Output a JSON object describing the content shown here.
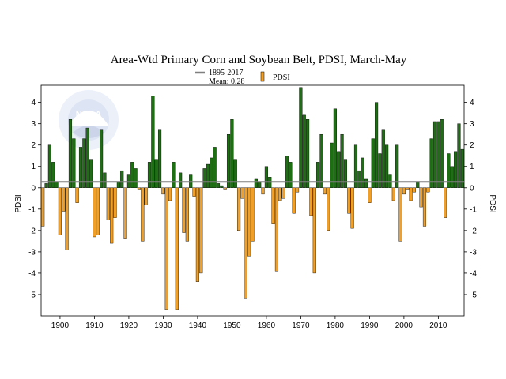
{
  "chart_data": {
    "type": "bar",
    "title": "Area-Wtd Primary Corn and Soybean Belt, PDSI, March-May",
    "ylabel_left": "PDSI",
    "ylabel_right": "PDSI",
    "xlim": [
      1895,
      2017
    ],
    "ylim": [
      -6,
      4.8
    ],
    "yticks": [
      -5,
      -4,
      -3,
      -2,
      -1,
      0,
      1,
      2,
      3,
      4
    ],
    "xticks": [
      1900,
      1910,
      1920,
      1930,
      1940,
      1950,
      1960,
      1970,
      1980,
      1990,
      2000,
      2010
    ],
    "grid": false,
    "legend_position": "top-center",
    "colors": {
      "positive": "#1e6e14",
      "negative": "#f0a028",
      "mean_line": "#7f7f7f",
      "bar_edge": "#000000"
    },
    "mean": {
      "label": "1895-2017",
      "sublabel": "Mean: 0.28",
      "value": 0.28
    },
    "series": [
      {
        "name": "PDSI",
        "x": [
          1895,
          1896,
          1897,
          1898,
          1899,
          1900,
          1901,
          1902,
          1903,
          1904,
          1905,
          1906,
          1907,
          1908,
          1909,
          1910,
          1911,
          1912,
          1913,
          1914,
          1915,
          1916,
          1917,
          1918,
          1919,
          1920,
          1921,
          1922,
          1923,
          1924,
          1925,
          1926,
          1927,
          1928,
          1929,
          1930,
          1931,
          1932,
          1933,
          1934,
          1935,
          1936,
          1937,
          1938,
          1939,
          1940,
          1941,
          1942,
          1943,
          1944,
          1945,
          1946,
          1947,
          1948,
          1949,
          1950,
          1951,
          1952,
          1953,
          1954,
          1955,
          1956,
          1957,
          1958,
          1959,
          1960,
          1961,
          1962,
          1963,
          1964,
          1965,
          1966,
          1967,
          1968,
          1969,
          1970,
          1971,
          1972,
          1973,
          1974,
          1975,
          1976,
          1977,
          1978,
          1979,
          1980,
          1981,
          1982,
          1983,
          1984,
          1985,
          1986,
          1987,
          1988,
          1989,
          1990,
          1991,
          1992,
          1993,
          1994,
          1995,
          1996,
          1997,
          1998,
          1999,
          2000,
          2001,
          2002,
          2003,
          2004,
          2005,
          2006,
          2007,
          2008,
          2009,
          2010,
          2011,
          2012,
          2013,
          2014,
          2015,
          2016,
          2017
        ],
        "values": [
          -1.8,
          0.2,
          2.0,
          1.2,
          0.3,
          -2.2,
          -1.1,
          -2.9,
          3.2,
          2.3,
          -0.7,
          1.9,
          2.3,
          2.8,
          1.3,
          -2.3,
          -2.2,
          2.7,
          0.7,
          -1.5,
          -2.6,
          -1.4,
          0.3,
          0.8,
          -2.4,
          0.6,
          1.2,
          0.9,
          -0.1,
          -2.5,
          -0.8,
          1.2,
          4.3,
          1.3,
          2.7,
          -0.3,
          -5.7,
          -0.6,
          1.2,
          -5.7,
          0.7,
          -2.1,
          -2.5,
          0.6,
          -0.4,
          -4.4,
          -4.0,
          0.9,
          1.1,
          1.4,
          1.9,
          0.2,
          0.1,
          -0.1,
          2.5,
          3.2,
          1.3,
          -2.0,
          -0.5,
          -5.2,
          -3.2,
          -2.5,
          0.4,
          0.3,
          -0.3,
          1.0,
          0.5,
          -1.7,
          -3.9,
          -0.6,
          -0.5,
          1.5,
          1.2,
          -1.2,
          -0.2,
          4.7,
          3.4,
          3.2,
          -1.3,
          -4.0,
          1.2,
          2.5,
          -0.3,
          -2.0,
          2.1,
          3.7,
          1.7,
          2.5,
          1.3,
          -1.2,
          -1.9,
          2.0,
          0.8,
          1.4,
          0.4,
          -0.7,
          2.3,
          4.0,
          1.6,
          2.7,
          2.0,
          0.6,
          -0.6,
          2.0,
          -2.5,
          -0.3,
          -0.1,
          -0.6,
          -0.2,
          0.3,
          -0.9,
          -1.8,
          -0.2,
          2.3,
          3.1,
          3.1,
          3.2,
          -1.4,
          1.6,
          1.0,
          1.7,
          3.0,
          1.8
        ]
      }
    ]
  }
}
